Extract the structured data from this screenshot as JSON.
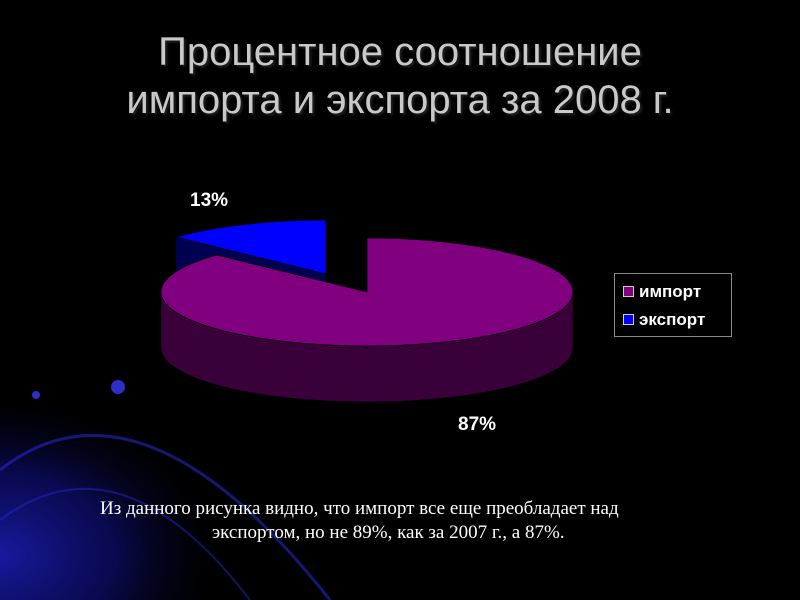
{
  "slide": {
    "title_line1": "Процентное соотношение",
    "title_line2": "импорта и экспорта за 2008 г.",
    "caption_line1": "Из данного рисунка видно, что импорт все еще преобладает над",
    "caption_line2": "экспортом, но не 89%, как за 2007 г., а 87%."
  },
  "chart_data": {
    "type": "pie",
    "title": "",
    "categories": [
      "импорт",
      "экспорт"
    ],
    "values": [
      87,
      13
    ],
    "labels": [
      "87%",
      "13%"
    ],
    "colors": [
      "#800080",
      "#0000ff"
    ],
    "legend_position": "right",
    "exploded": true,
    "three_d": true
  }
}
